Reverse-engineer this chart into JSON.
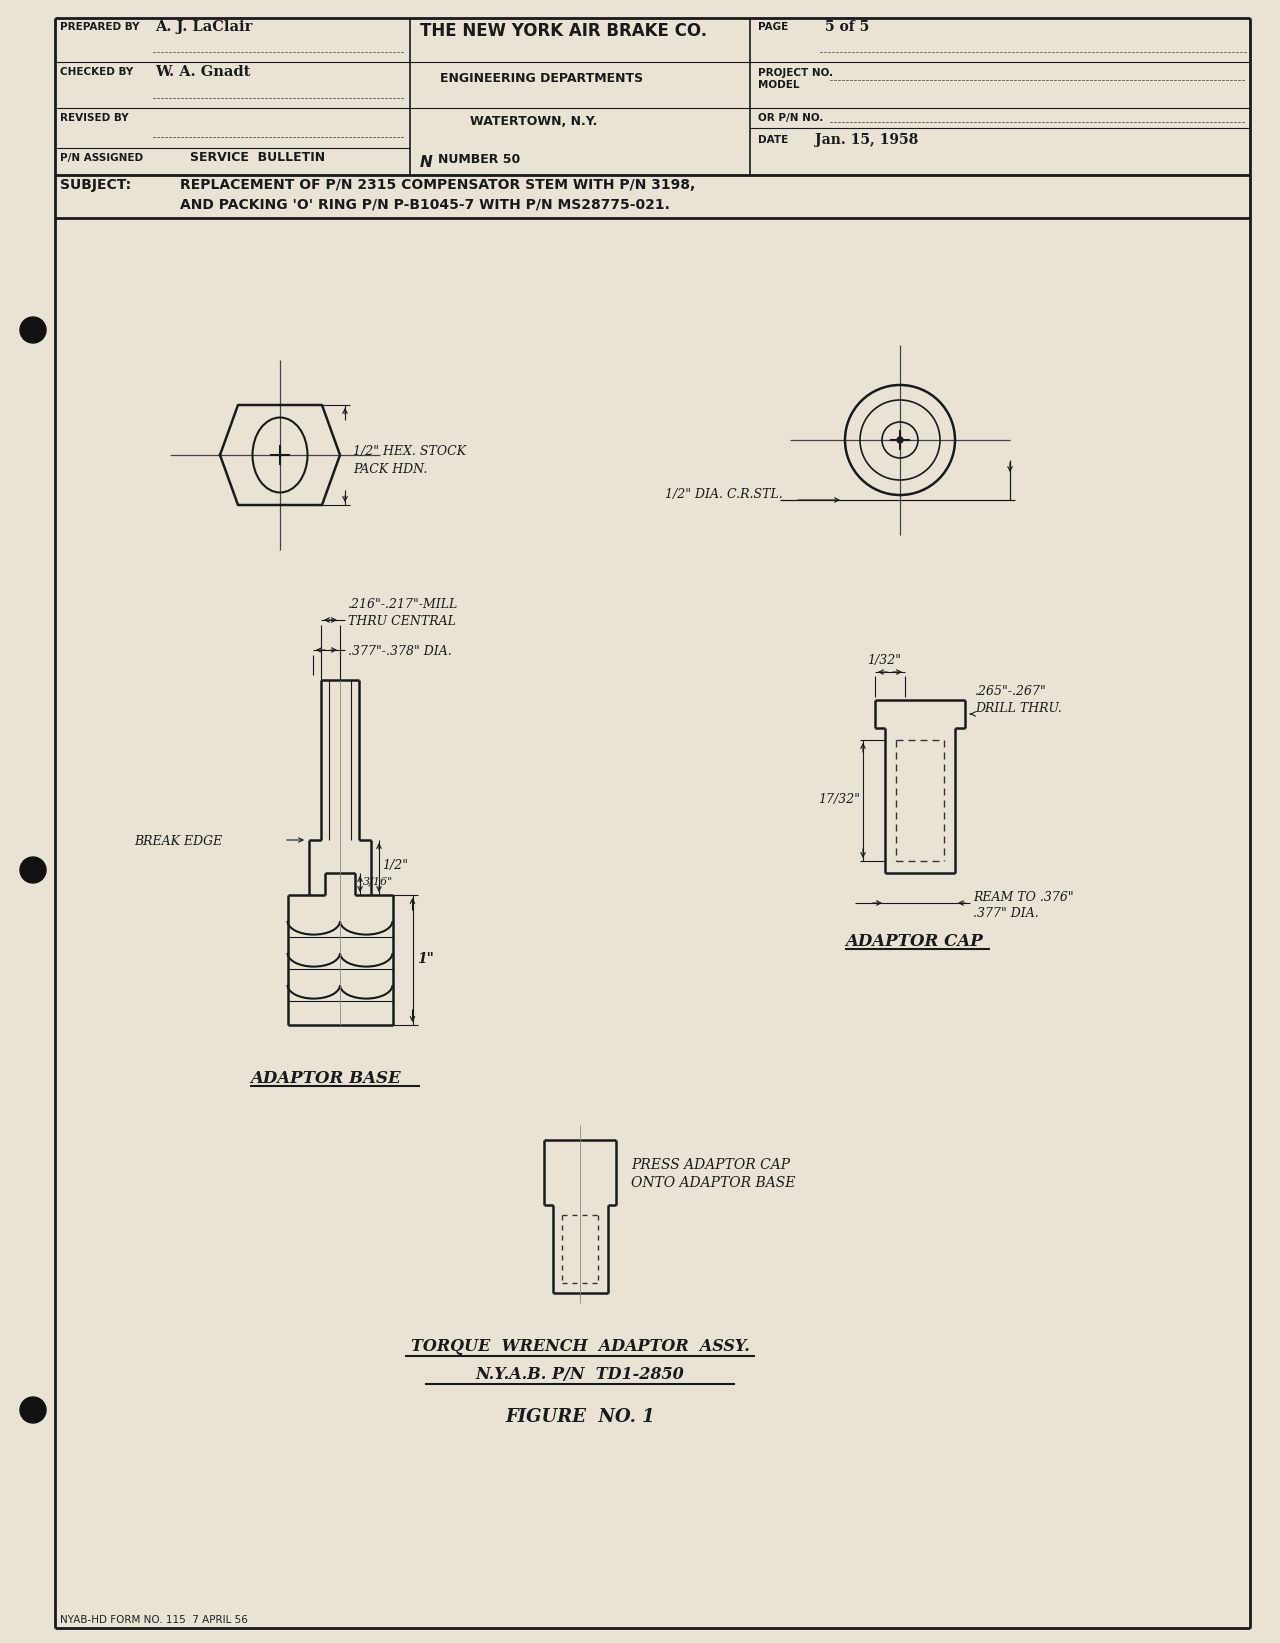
{
  "page_bg": "#e8e3d5",
  "border_color": "#1a1a1a",
  "header": {
    "prepared_by_label": "PREPARED BY",
    "prepared_by_value": "A. J. LaClair",
    "checked_by_label": "CHECKED BY",
    "checked_by_value": "W. A. Gnadt",
    "revised_by_label": "REVISED BY",
    "pn_assigned_label": "P/N ASSIGNED",
    "company": "THE NEW YORK AIR BRAKE CO.",
    "dept": "ENGINEERING DEPARTMENTS",
    "city": "WATERTOWN, N.Y.",
    "bulletin": "SERVICE BULLETIN",
    "N_symbol": "N",
    "number": "NUMBER 50",
    "page_label": "PAGE",
    "page_value": "5 of 5",
    "project_label": "PROJECT NO.",
    "model_label": "MODEL",
    "or_pn_label": "OR P/N NO.",
    "date_label": "DATE",
    "date_value": "Jan. 15, 1958"
  },
  "subject_label": "SUBJECT:",
  "subject_line1": "REPLACEMENT OF P/N 2315 COMPENSATOR STEM WITH P/N 3198,",
  "subject_line2": "AND PACKING 'O' RING P/N P-B1045-7 WITH P/N MS28775-021.",
  "hex_label1": "1/2\" HEX. STOCK",
  "hex_label2": "PACK HDN.",
  "circle_label": "1/2\" DIA. C.R.STL.",
  "dim1_label1": ".216\"-.217\"-MILL",
  "dim1_label2": "THRU CENTRAL",
  "dim1_label3": ".377\"-.378\" DIA.",
  "break_edge_label": "BREAK EDGE",
  "dim_316": "3/16\"",
  "dim_half": "1/2\"",
  "dim_1in": "1\"",
  "cap_dim1": "1/32\"",
  "cap_dim2": ".265\"-.267\"",
  "cap_dim2b": "DRILL THRU.",
  "cap_dim3": "17/32\"",
  "cap_dim4a": "REAM TO .376\"",
  "cap_dim4b": ".377\" DIA.",
  "adaptor_base_label": "ADAPTOR BASE",
  "adaptor_cap_label": "ADAPTOR CAP",
  "assy_note1": "PRESS ADAPTOR CAP",
  "assy_note2": "ONTO ADAPTOR BASE",
  "assy_title1": "TORQUE  WRENCH  ADAPTOR  ASSY.",
  "assy_title2": "N.Y.A.B. P/N  TD1-2850",
  "figure": "FIGURE  NO. 1",
  "footer": "NYAB-HD FORM NO. 115  7 APRIL 56"
}
